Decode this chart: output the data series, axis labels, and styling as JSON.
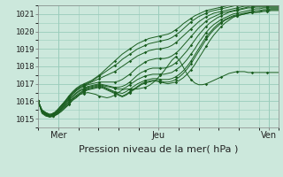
{
  "title": "",
  "xlabel": "Pression niveau de la mer( hPa )",
  "xlim": [
    0,
    96
  ],
  "ylim": [
    1014.5,
    1021.5
  ],
  "yticks": [
    1015,
    1016,
    1017,
    1018,
    1019,
    1020,
    1021
  ],
  "xtick_positions": [
    8,
    48,
    92
  ],
  "xtick_labels": [
    "Mer",
    "Jeu",
    "Ven"
  ],
  "vlines": [
    8,
    48,
    92
  ],
  "bg_color": "#cce8dc",
  "grid_color": "#99ccbb",
  "line_color": "#1a5e20",
  "series": [
    [
      1016.0,
      1015.3,
      1015.15,
      1015.1,
      1015.15,
      1015.25,
      1015.4,
      1015.6,
      1015.8,
      1016.05,
      1016.2,
      1016.4,
      1016.55,
      1016.65,
      1016.7,
      1016.75,
      1016.8,
      1016.75,
      1016.65,
      1016.55,
      1016.45,
      1016.35,
      1016.25,
      1016.35,
      1016.5,
      1016.65,
      1016.8,
      1016.95,
      1017.05,
      1017.1,
      1017.15,
      1017.15,
      1017.1,
      1017.05,
      1017.0,
      1017.05,
      1017.1,
      1017.2,
      1017.35,
      1017.55,
      1017.8,
      1018.1,
      1018.45,
      1018.8,
      1019.15,
      1019.5,
      1019.8,
      1020.05,
      1020.3,
      1020.5,
      1020.65,
      1020.8,
      1020.9,
      1020.95,
      1021.0,
      1021.05,
      1021.1,
      1021.1,
      1021.1,
      1021.15,
      1021.15,
      1021.2,
      1021.2,
      1021.2
    ],
    [
      1016.0,
      1015.35,
      1015.2,
      1015.1,
      1015.15,
      1015.25,
      1015.45,
      1015.65,
      1015.85,
      1016.1,
      1016.25,
      1016.45,
      1016.6,
      1016.7,
      1016.75,
      1016.8,
      1016.85,
      1016.8,
      1016.7,
      1016.6,
      1016.5,
      1016.4,
      1016.3,
      1016.4,
      1016.55,
      1016.7,
      1016.85,
      1017.0,
      1017.1,
      1017.15,
      1017.2,
      1017.2,
      1017.15,
      1017.1,
      1017.1,
      1017.15,
      1017.25,
      1017.4,
      1017.6,
      1017.85,
      1018.15,
      1018.5,
      1018.85,
      1019.2,
      1019.55,
      1019.85,
      1020.1,
      1020.3,
      1020.5,
      1020.65,
      1020.75,
      1020.85,
      1020.9,
      1020.95,
      1021.0,
      1021.05,
      1021.1,
      1021.1,
      1021.15,
      1021.2,
      1021.2,
      1021.25,
      1021.25,
      1021.25
    ],
    [
      1016.0,
      1015.35,
      1015.2,
      1015.1,
      1015.15,
      1015.3,
      1015.5,
      1015.7,
      1015.95,
      1016.15,
      1016.35,
      1016.5,
      1016.65,
      1016.75,
      1016.8,
      1016.85,
      1016.9,
      1016.85,
      1016.75,
      1016.65,
      1016.55,
      1016.5,
      1016.45,
      1016.55,
      1016.7,
      1016.85,
      1017.0,
      1017.1,
      1017.2,
      1017.25,
      1017.3,
      1017.3,
      1017.25,
      1017.25,
      1017.25,
      1017.3,
      1017.4,
      1017.55,
      1017.75,
      1018.0,
      1018.3,
      1018.65,
      1019.0,
      1019.35,
      1019.7,
      1019.95,
      1020.2,
      1020.4,
      1020.55,
      1020.7,
      1020.8,
      1020.9,
      1020.95,
      1021.0,
      1021.05,
      1021.1,
      1021.15,
      1021.2,
      1021.2,
      1021.25,
      1021.25,
      1021.3,
      1021.3,
      1021.3
    ],
    [
      1016.0,
      1015.4,
      1015.25,
      1015.15,
      1015.2,
      1015.35,
      1015.55,
      1015.8,
      1016.05,
      1016.25,
      1016.45,
      1016.6,
      1016.7,
      1016.8,
      1016.85,
      1016.9,
      1016.95,
      1016.9,
      1016.85,
      1016.8,
      1016.75,
      1016.7,
      1016.7,
      1016.8,
      1016.95,
      1017.1,
      1017.25,
      1017.35,
      1017.45,
      1017.5,
      1017.55,
      1017.55,
      1017.55,
      1017.55,
      1017.6,
      1017.65,
      1017.8,
      1017.95,
      1018.15,
      1018.4,
      1018.7,
      1019.0,
      1019.35,
      1019.65,
      1019.95,
      1020.2,
      1020.4,
      1020.55,
      1020.7,
      1020.8,
      1020.9,
      1021.0,
      1021.05,
      1021.1,
      1021.15,
      1021.2,
      1021.25,
      1021.3,
      1021.3,
      1021.35,
      1021.35,
      1021.35,
      1021.35,
      1021.35
    ],
    [
      1016.0,
      1015.4,
      1015.25,
      1015.15,
      1015.2,
      1015.35,
      1015.6,
      1015.85,
      1016.1,
      1016.3,
      1016.5,
      1016.65,
      1016.75,
      1016.85,
      1016.9,
      1016.95,
      1017.0,
      1016.95,
      1016.9,
      1016.85,
      1016.8,
      1016.8,
      1016.85,
      1016.95,
      1017.1,
      1017.3,
      1017.5,
      1017.65,
      1017.75,
      1017.85,
      1017.9,
      1017.9,
      1017.9,
      1017.9,
      1017.95,
      1018.05,
      1018.2,
      1018.4,
      1018.65,
      1018.9,
      1019.2,
      1019.5,
      1019.8,
      1020.05,
      1020.3,
      1020.5,
      1020.65,
      1020.8,
      1020.9,
      1021.0,
      1021.1,
      1021.15,
      1021.2,
      1021.25,
      1021.3,
      1021.35,
      1021.35,
      1021.4,
      1021.4,
      1021.4,
      1021.4,
      1021.4,
      1021.4,
      1021.4
    ],
    [
      1016.0,
      1015.45,
      1015.3,
      1015.2,
      1015.25,
      1015.4,
      1015.65,
      1015.9,
      1016.15,
      1016.4,
      1016.6,
      1016.75,
      1016.85,
      1016.95,
      1017.0,
      1017.05,
      1017.1,
      1017.1,
      1017.1,
      1017.1,
      1017.1,
      1017.15,
      1017.25,
      1017.4,
      1017.55,
      1017.75,
      1017.95,
      1018.1,
      1018.25,
      1018.35,
      1018.4,
      1018.45,
      1018.45,
      1018.45,
      1018.5,
      1018.6,
      1018.75,
      1018.95,
      1019.2,
      1019.45,
      1019.7,
      1019.95,
      1020.2,
      1020.4,
      1020.6,
      1020.75,
      1020.85,
      1020.95,
      1021.05,
      1021.1,
      1021.15,
      1021.2,
      1021.25,
      1021.3,
      1021.35,
      1021.4,
      1021.4,
      1021.45,
      1021.45,
      1021.45,
      1021.45,
      1021.45,
      1021.45,
      1021.45
    ],
    [
      1016.0,
      1015.45,
      1015.3,
      1015.2,
      1015.25,
      1015.45,
      1015.7,
      1015.95,
      1016.2,
      1016.45,
      1016.65,
      1016.8,
      1016.9,
      1017.0,
      1017.1,
      1017.2,
      1017.3,
      1017.4,
      1017.5,
      1017.6,
      1017.7,
      1017.85,
      1018.0,
      1018.15,
      1018.3,
      1018.45,
      1018.6,
      1018.7,
      1018.8,
      1018.9,
      1018.95,
      1019.0,
      1019.0,
      1019.05,
      1019.1,
      1019.2,
      1019.35,
      1019.55,
      1019.75,
      1019.95,
      1020.15,
      1020.35,
      1020.55,
      1020.7,
      1020.85,
      1020.95,
      1021.05,
      1021.1,
      1021.15,
      1021.2,
      1021.25,
      1021.3,
      1021.35,
      1021.4,
      1021.45,
      1021.45,
      1021.5,
      1021.5,
      1021.5,
      1021.5,
      1021.5,
      1021.5,
      1021.5,
      1021.5
    ],
    [
      1016.0,
      1015.5,
      1015.35,
      1015.25,
      1015.3,
      1015.5,
      1015.75,
      1016.0,
      1016.25,
      1016.5,
      1016.7,
      1016.85,
      1016.95,
      1017.05,
      1017.15,
      1017.3,
      1017.45,
      1017.6,
      1017.75,
      1017.9,
      1018.05,
      1018.2,
      1018.4,
      1018.55,
      1018.7,
      1018.85,
      1019.0,
      1019.1,
      1019.2,
      1019.3,
      1019.35,
      1019.4,
      1019.45,
      1019.5,
      1019.55,
      1019.65,
      1019.8,
      1019.95,
      1020.15,
      1020.35,
      1020.55,
      1020.7,
      1020.85,
      1020.95,
      1021.05,
      1021.15,
      1021.2,
      1021.25,
      1021.3,
      1021.35,
      1021.4,
      1021.45,
      1021.5,
      1021.5,
      1021.5,
      1021.5,
      1021.5,
      1021.5,
      1021.5,
      1021.5,
      1021.5,
      1021.5,
      1021.5,
      1021.5
    ],
    [
      1016.0,
      1015.5,
      1015.35,
      1015.25,
      1015.3,
      1015.5,
      1015.75,
      1016.0,
      1016.3,
      1016.55,
      1016.75,
      1016.9,
      1017.0,
      1017.1,
      1017.2,
      1017.35,
      1017.5,
      1017.7,
      1017.9,
      1018.1,
      1018.3,
      1018.5,
      1018.7,
      1018.85,
      1019.0,
      1019.15,
      1019.3,
      1019.4,
      1019.5,
      1019.6,
      1019.65,
      1019.7,
      1019.75,
      1019.8,
      1019.85,
      1019.95,
      1020.1,
      1020.25,
      1020.45,
      1020.6,
      1020.75,
      1020.9,
      1021.0,
      1021.1,
      1021.2,
      1021.25,
      1021.3,
      1021.35,
      1021.4,
      1021.45,
      1021.5,
      1021.5,
      1021.5,
      1021.5,
      1021.5,
      1021.5,
      1021.5,
      1021.5,
      1021.5,
      1021.5,
      1021.5,
      1021.5,
      1021.5,
      1021.5
    ],
    [
      1016.0,
      1015.4,
      1015.25,
      1015.15,
      1015.2,
      1015.35,
      1015.55,
      1015.75,
      1015.95,
      1016.15,
      1016.3,
      1016.4,
      1016.45,
      1016.5,
      1016.45,
      1016.4,
      1016.3,
      1016.25,
      1016.2,
      1016.25,
      1016.35,
      1016.5,
      1016.65,
      1016.7,
      1016.7,
      1016.7,
      1016.7,
      1016.75,
      1016.8,
      1016.9,
      1017.05,
      1017.25,
      1017.5,
      1017.75,
      1018.05,
      1018.35,
      1018.55,
      1018.35,
      1017.95,
      1017.55,
      1017.25,
      1017.05,
      1016.95,
      1016.95,
      1017.0,
      1017.1,
      1017.2,
      1017.3,
      1017.4,
      1017.5,
      1017.6,
      1017.65,
      1017.7,
      1017.7,
      1017.7,
      1017.65,
      1017.65,
      1017.65,
      1017.65,
      1017.65,
      1017.65,
      1017.65,
      1017.65,
      1017.65
    ]
  ]
}
